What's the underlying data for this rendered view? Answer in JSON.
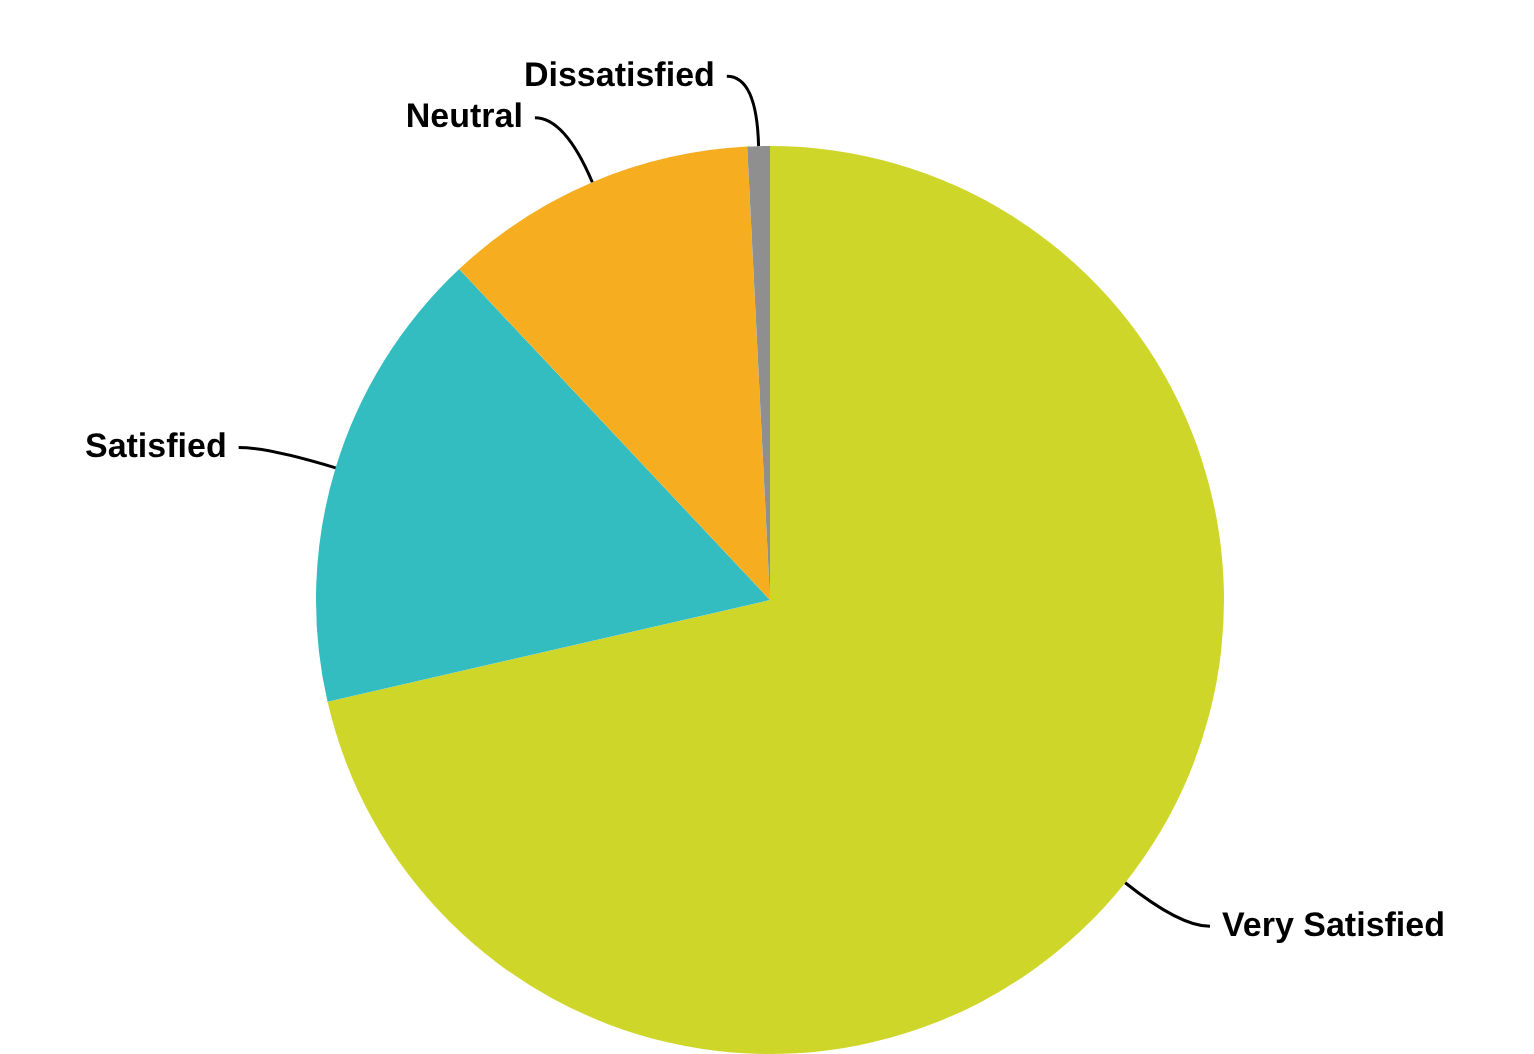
{
  "chart_data": {
    "type": "pie",
    "categories": [
      "Very Satisfied",
      "Satisfied",
      "Neutral",
      "Dissatisfied"
    ],
    "values": [
      71.4,
      16.6,
      11.2,
      0.8
    ],
    "colors": [
      "#cfd62a",
      "#33bdc0",
      "#f6ae20",
      "#8f8f8f"
    ],
    "legend": false
  }
}
